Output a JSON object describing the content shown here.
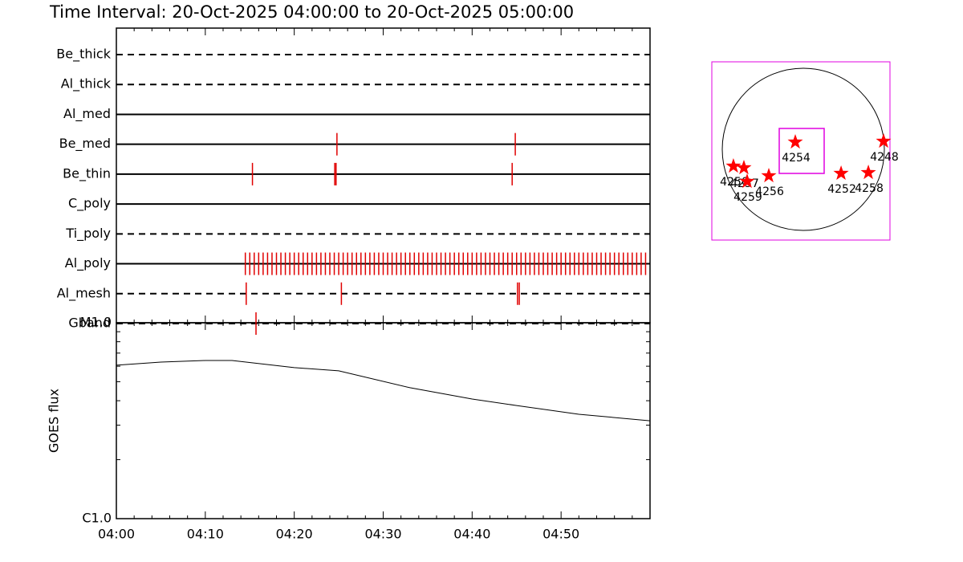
{
  "chart_data": [
    {
      "type": "timeline",
      "title": "Time Interval: 20-Oct-2025 04:00:00 to 20-Oct-2025 05:00:00",
      "xlim": [
        0,
        60
      ],
      "xticks": [
        0,
        10,
        20,
        30,
        40,
        50
      ],
      "xminor_ticks": [
        2,
        4,
        6,
        8,
        12,
        14,
        16,
        18,
        22,
        24,
        26,
        28,
        32,
        34,
        36,
        38,
        42,
        44,
        46,
        48,
        52,
        54,
        56,
        58
      ],
      "color": "#e00000",
      "rows": [
        {
          "name": "Be_thick",
          "style": "dashed",
          "times": []
        },
        {
          "name": "Al_thick",
          "style": "dashed",
          "times": []
        },
        {
          "name": "Al_med",
          "style": "solid",
          "times": []
        },
        {
          "name": "Be_med",
          "style": "solid",
          "times": [
            24.8,
            44.85
          ]
        },
        {
          "name": "Be_thin",
          "style": "solid",
          "times": [
            15.3,
            24.55,
            24.7,
            44.5
          ]
        },
        {
          "name": "C_poly",
          "style": "solid",
          "times": []
        },
        {
          "name": "Ti_poly",
          "style": "dashed",
          "times": []
        },
        {
          "name": "Al_poly",
          "style": "solid",
          "times": [
            14.5,
            15,
            15.5,
            16,
            16.5,
            17,
            17.5,
            18,
            18.5,
            19,
            19.5,
            20,
            20.5,
            21,
            21.5,
            22,
            22.5,
            23,
            23.5,
            24,
            24.5,
            25,
            25.5,
            26,
            26.5,
            27,
            27.5,
            28,
            28.5,
            29,
            29.5,
            30,
            30.5,
            31,
            31.5,
            32,
            32.5,
            33,
            33.5,
            34,
            34.5,
            35,
            35.5,
            36,
            36.5,
            37,
            37.5,
            38,
            38.5,
            39,
            39.5,
            40,
            40.5,
            41,
            41.5,
            42,
            42.5,
            43,
            43.5,
            44,
            44.5,
            45,
            45.5,
            46,
            46.5,
            47,
            47.5,
            48,
            48.5,
            49,
            49.5,
            50,
            50.5,
            51,
            51.5,
            52,
            52.5,
            53,
            53.5,
            54,
            54.5,
            55,
            55.5,
            56,
            56.5,
            57,
            57.5,
            58,
            58.5,
            59,
            59.5
          ]
        },
        {
          "name": "Al_mesh",
          "style": "dashed",
          "times": [
            14.6,
            25.3,
            45.1,
            45.3
          ]
        },
        {
          "name": "Gband",
          "style": "dashed",
          "times": [
            15.7
          ]
        }
      ]
    },
    {
      "type": "line",
      "y_label": "GOES flux",
      "log_scale": true,
      "x": [
        0,
        5,
        10,
        13,
        20,
        25,
        33,
        40,
        45,
        52,
        60
      ],
      "values": [
        6.07e-06,
        6.3e-06,
        6.42e-06,
        6.42e-06,
        5.9e-06,
        5.68e-06,
        4.66e-06,
        4.08e-06,
        3.78e-06,
        3.41e-06,
        3.16e-06
      ],
      "color": "#000000",
      "xlim": [
        0,
        60
      ],
      "xticks": [
        {
          "value": 0,
          "label": "04:00"
        },
        {
          "value": 10,
          "label": "04:10"
        },
        {
          "value": 20,
          "label": "04:20"
        },
        {
          "value": 30,
          "label": "04:30"
        },
        {
          "value": 40,
          "label": "04:40"
        },
        {
          "value": 50,
          "label": "04:50"
        }
      ],
      "xminor_ticks": [
        2,
        4,
        6,
        8,
        12,
        14,
        16,
        18,
        22,
        24,
        26,
        28,
        32,
        34,
        36,
        38,
        42,
        44,
        46,
        48,
        52,
        54,
        56,
        58
      ],
      "ylim": [
        1e-06,
        1e-05
      ],
      "yticks": [
        {
          "value": 1e-06,
          "label": "C1.0"
        },
        {
          "value": 1e-05,
          "label": "M1.0"
        }
      ],
      "yminor_ticks": [
        2e-06,
        3e-06,
        4e-06,
        5e-06,
        6e-06,
        7e-06,
        8e-06,
        9e-06
      ]
    },
    {
      "type": "map",
      "xlim": [
        -1100,
        1100
      ],
      "ylim": [
        -1100,
        1100
      ],
      "color": "#ff0000",
      "regions": [
        {
          "name": "4254",
          "x": -69,
          "y": 109
        },
        {
          "name": "4248",
          "x": 1021,
          "y": 119
        },
        {
          "name": "4252",
          "x": 496,
          "y": -277
        },
        {
          "name": "4258",
          "x": 833,
          "y": -268
        },
        {
          "name": "4256",
          "x": -396,
          "y": -307
        },
        {
          "name": "4250",
          "x": -833,
          "y": -188
        },
        {
          "name": "4257",
          "x": -704,
          "y": -208
        },
        {
          "name": "4259",
          "x": -664,
          "y": -377
        }
      ]
    }
  ]
}
